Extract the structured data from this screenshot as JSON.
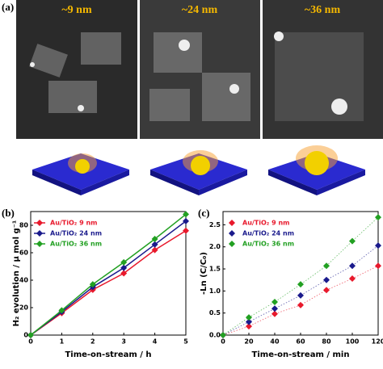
{
  "panels": {
    "a": "(a)",
    "b": "(b)",
    "c": "(c)"
  },
  "images": [
    "~9 nm",
    "~24 nm",
    "~36 nm"
  ],
  "chart_data": [
    {
      "type": "line",
      "xlabel": "Time-on-stream / h",
      "ylabel": "H₂ evolution / μ mol g⁻¹",
      "x": [
        0,
        1,
        2,
        3,
        4,
        5
      ],
      "xlim": [
        0,
        5
      ],
      "xticks": [
        0,
        1,
        2,
        3,
        4,
        5
      ],
      "ylim": [
        0,
        90
      ],
      "yticks": [
        0,
        20,
        40,
        60,
        80
      ],
      "legend": "upper left",
      "series": [
        {
          "name": "Au/TiO₂ 9 nm",
          "color": "#e8192c",
          "values": [
            0,
            16,
            33,
            45,
            62,
            76
          ]
        },
        {
          "name": "Au/TiO₂ 24 nm",
          "color": "#1a1a8c",
          "values": [
            0,
            17,
            35,
            49,
            66,
            83
          ]
        },
        {
          "name": "Au/TiO₂ 36 nm",
          "color": "#22a022",
          "values": [
            0,
            18,
            37,
            53,
            70,
            88
          ]
        }
      ]
    },
    {
      "type": "scatter",
      "xlabel": "Time-on-stream / min",
      "ylabel": "-Ln (C/C₀)",
      "x": [
        0,
        20,
        40,
        60,
        80,
        100,
        120
      ],
      "xlim": [
        0,
        120
      ],
      "xticks": [
        0,
        20,
        40,
        60,
        80,
        100,
        120
      ],
      "ylim": [
        0,
        2.8
      ],
      "yticks": [
        {
          "value": 0,
          "label": "0.0"
        },
        0.5,
        {
          "value": 1,
          "label": "1.0"
        },
        1.5,
        {
          "value": 2,
          "label": "2.0"
        },
        2.5
      ],
      "legend": "upper left",
      "series": [
        {
          "name": "Au/TiO₂ 9 nm",
          "color": "#e8192c",
          "values": [
            0,
            0.2,
            0.48,
            0.68,
            1.02,
            1.28,
            1.57
          ]
        },
        {
          "name": "Au/TiO₂ 24 nm",
          "color": "#1a1a8c",
          "values": [
            0,
            0.3,
            0.6,
            0.9,
            1.25,
            1.57,
            2.03
          ]
        },
        {
          "name": "Au/TiO₂ 36 nm",
          "color": "#22a022",
          "values": [
            0,
            0.4,
            0.75,
            1.15,
            1.57,
            2.13,
            2.67
          ]
        }
      ]
    }
  ]
}
